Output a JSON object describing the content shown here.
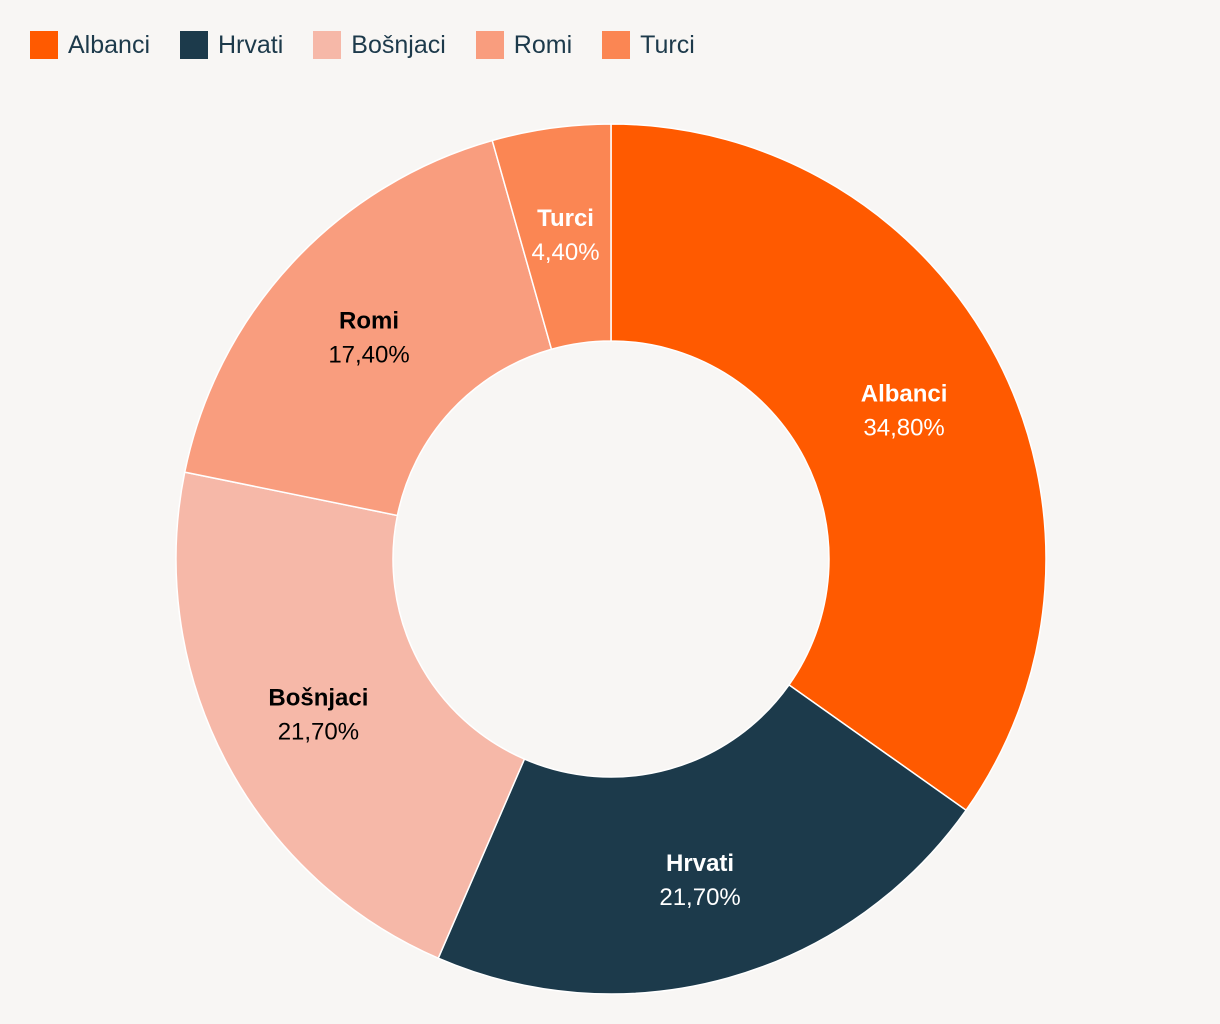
{
  "chart_data": {
    "type": "pie",
    "variant": "donut",
    "legend_position": "top-left",
    "categories": [
      "Albanci",
      "Hrvati",
      "Bošnjaci",
      "Romi",
      "Turci"
    ],
    "values": [
      34.8,
      21.7,
      21.7,
      17.4,
      4.4
    ],
    "value_labels": [
      "34,80%",
      "21,70%",
      "21,70%",
      "17,40%",
      "4,40%"
    ],
    "colors": [
      "#ff5a00",
      "#1c3a4b",
      "#f6b8a8",
      "#f99d7e",
      "#fb8653"
    ],
    "label_colors": [
      "#ffffff",
      "#ffffff",
      "#000000",
      "#000000",
      "#ffffff"
    ]
  },
  "legend": {
    "items": [
      {
        "label": "Albanci",
        "color": "#ff5a00"
      },
      {
        "label": "Hrvati",
        "color": "#1c3a4b"
      },
      {
        "label": "Bošnjaci",
        "color": "#f6b8a8"
      },
      {
        "label": "Romi",
        "color": "#f99d7e"
      },
      {
        "label": "Turci",
        "color": "#fb8653"
      }
    ]
  }
}
